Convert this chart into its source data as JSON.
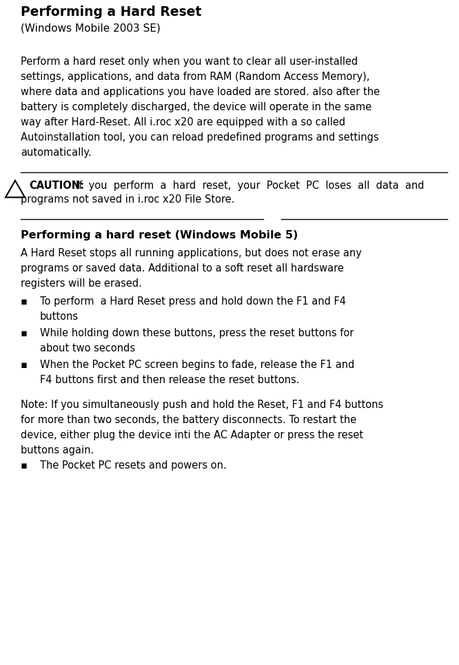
{
  "title": "Performing a Hard Reset",
  "subtitle": "(Windows Mobile 2003 SE)",
  "para1": "Perform a hard reset only when you want to clear all user-installed settings, applications, and data from RAM (Random Access Memory), where data and applications you have loaded are stored. also after the battery is completely discharged, the device will operate in the same way after Hard-Reset. All i.roc x20 are equipped with a so called Autoinstallation tool, you can reload predefined programs and settings automatically.",
  "caution_bold": "CAUTION:",
  "caution_line1": "If  you  perform  a  hard  reset,  your  Pocket  PC  loses  all  data  and",
  "caution_line2": "programs not saved in i.roc x20 File Store.",
  "section2_title": "Performing a hard reset (Windows Mobile 5)",
  "para2": "A Hard Reset stops all running applications, but does not erase any programs or saved data. Additional to a soft reset all hardsware registers will be erased.",
  "bullets": [
    "To perform  a Hard Reset press and hold down the F1 and F4 buttons",
    "While holding down these buttons, press the reset buttons for about two seconds",
    "When the Pocket PC screen begins to fade, release the F1 and F4 buttons first and then release the reset buttons."
  ],
  "note_text": "Note: If you simultaneously push and hold the Reset, F1 and F4 buttons for more than two seconds, the battery disconnects. To restart the device, either plug the device inti the AC Adapter or press the reset buttons again.",
  "note_bullet": "The Pocket PC resets and powers on.",
  "bg_color": "#ffffff",
  "text_color": "#000000",
  "line_color": "#000000",
  "fs_title": 13.5,
  "fs_body": 10.5,
  "fs_section": 11.5,
  "lm": 0.045,
  "rm": 0.975
}
